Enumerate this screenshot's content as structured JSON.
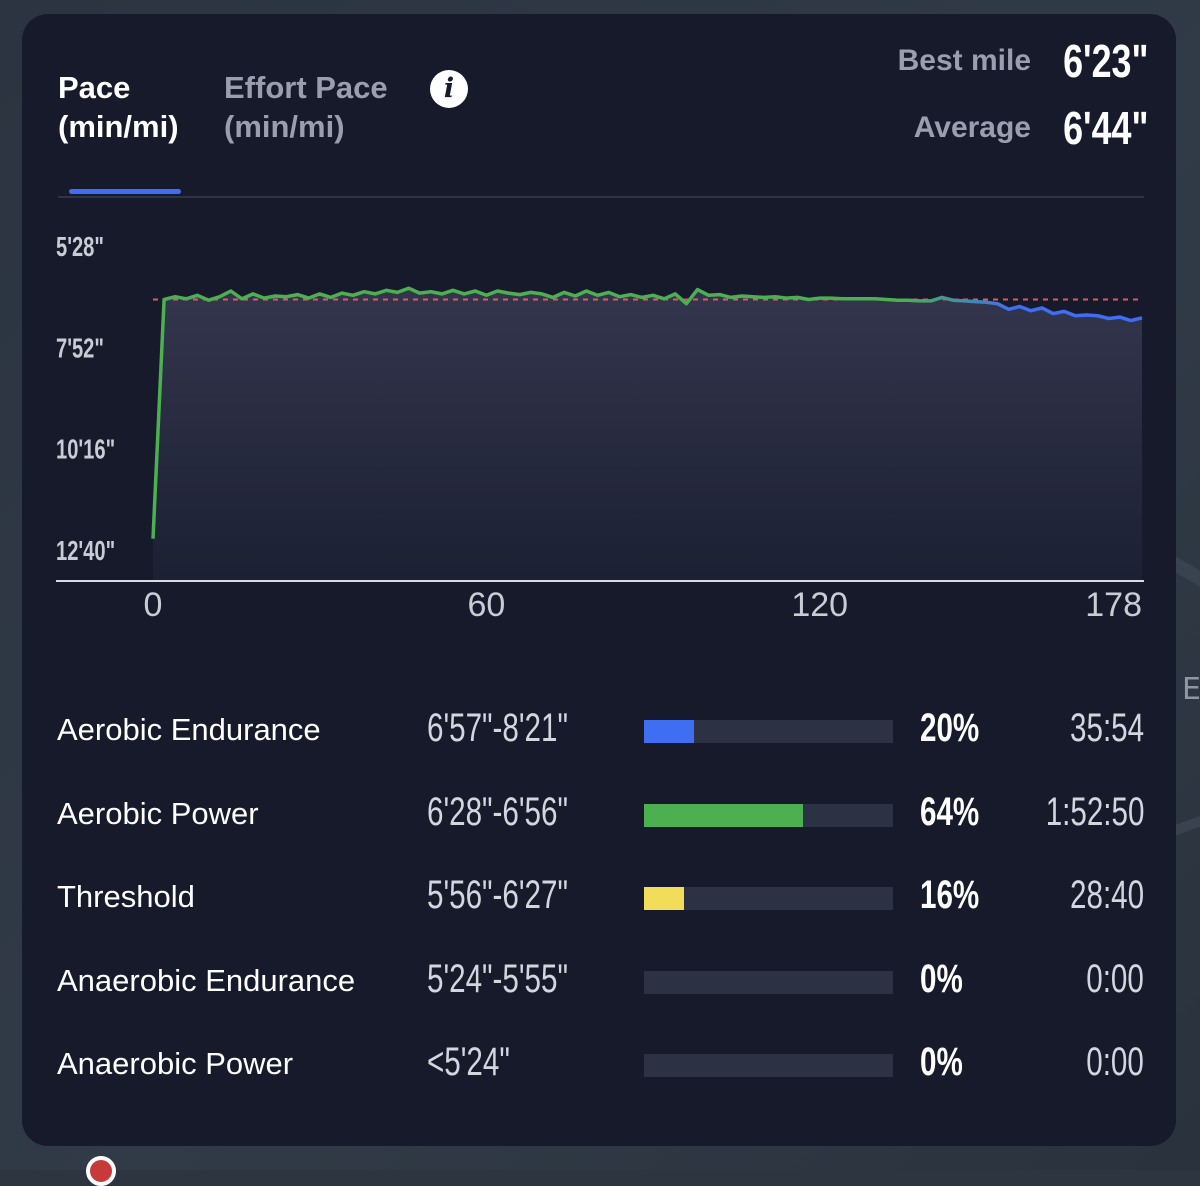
{
  "tabs": [
    {
      "line1": "Pace",
      "line2": "(min/mi)"
    },
    {
      "line1": "Effort Pace",
      "line2": "(min/mi)"
    }
  ],
  "info_icon": "i",
  "stats": {
    "best_mile_label": "Best mile",
    "best_mile_value": "6'23\"",
    "average_label": "Average",
    "average_value": "6'44\""
  },
  "colors": {
    "card_bg": "#161a2b",
    "accent_blue": "#3f6ef2",
    "line_green": "#4caf50",
    "average_line": "#e05a5a",
    "zone_blue": "#3f6ef2",
    "zone_green": "#4caf50",
    "zone_yellow": "#f2dd5a",
    "track": "#2c3144"
  },
  "chart_data": {
    "type": "line",
    "title": "",
    "xlabel": "",
    "ylabel": "",
    "y_unit": "min/mi pace (inverted axis, faster at top)",
    "y_ticks": [
      "5'28\"",
      "7'52\"",
      "10'16\"",
      "12'40\""
    ],
    "y_tick_seconds": [
      328,
      472,
      616,
      760
    ],
    "x_ticks": [
      "0",
      "60",
      "120",
      "178"
    ],
    "x_tick_values": [
      0,
      60,
      120,
      178
    ],
    "xlim": [
      0,
      178
    ],
    "ylim_seconds": [
      328,
      760
    ],
    "average_line_seconds": 404,
    "series": [
      {
        "color": "#4caf50",
        "x": [
          0,
          2,
          4,
          6,
          8,
          10,
          12,
          14,
          16,
          18,
          20,
          22,
          24,
          26,
          28,
          30,
          32,
          34,
          36,
          38,
          40,
          42,
          44,
          46,
          48,
          50,
          52,
          54,
          56,
          58,
          60,
          62,
          64,
          66,
          68,
          70,
          72,
          74,
          76,
          78,
          80,
          82,
          84,
          86,
          88,
          90,
          92,
          94,
          96,
          98,
          100,
          102,
          104,
          106,
          108,
          110,
          112,
          114,
          116,
          118,
          120,
          122,
          124,
          126,
          128,
          130,
          132,
          134,
          136,
          138,
          140,
          142,
          144,
          146,
          148,
          150,
          152,
          154,
          156,
          158,
          160,
          162,
          164,
          166,
          168,
          170,
          172,
          174,
          176,
          178
        ],
        "y": [
          744,
          404,
          400,
          403,
          398,
          405,
          400,
          392,
          403,
          396,
          402,
          399,
          400,
          397,
          402,
          396,
          401,
          395,
          398,
          393,
          396,
          391,
          394,
          388,
          395,
          393,
          396,
          391,
          396,
          392,
          398,
          392,
          395,
          397,
          394,
          396,
          401,
          394,
          399,
          392,
          398,
          394,
          400,
          397,
          401,
          398,
          403,
          396,
          410,
          390,
          398,
          397,
          401,
          399,
          400,
          401,
          400,
          402,
          401,
          404,
          402,
          402,
          403,
          403,
          403,
          403,
          404,
          405,
          405,
          406,
          406,
          401,
          405,
          406,
          407,
          408,
          410,
          418,
          414,
          420,
          416,
          424,
          421,
          427,
          426,
          427,
          431,
          429,
          434,
          430
        ]
      }
    ]
  },
  "zones": [
    {
      "name": "Aerobic Endurance",
      "range": "6'57\"-8'21\"",
      "percent": "20%",
      "fraction": 0.2,
      "time": "35:54",
      "color": "#3f6ef2"
    },
    {
      "name": "Aerobic Power",
      "range": "6'28\"-6'56\"",
      "percent": "64%",
      "fraction": 0.64,
      "time": "1:52:50",
      "color": "#4caf50"
    },
    {
      "name": "Threshold",
      "range": "5'56\"-6'27\"",
      "percent": "16%",
      "fraction": 0.16,
      "time": "28:40",
      "color": "#f2dd5a"
    },
    {
      "name": "Anaerobic Endurance",
      "range": "5'24\"-5'55\"",
      "percent": "0%",
      "fraction": 0,
      "time": "0:00",
      "color": "#ef7f3a"
    },
    {
      "name": "Anaerobic Power",
      "range": "<5'24\"",
      "percent": "0%",
      "fraction": 0,
      "time": "0:00",
      "color": "#e05a5a"
    }
  ]
}
